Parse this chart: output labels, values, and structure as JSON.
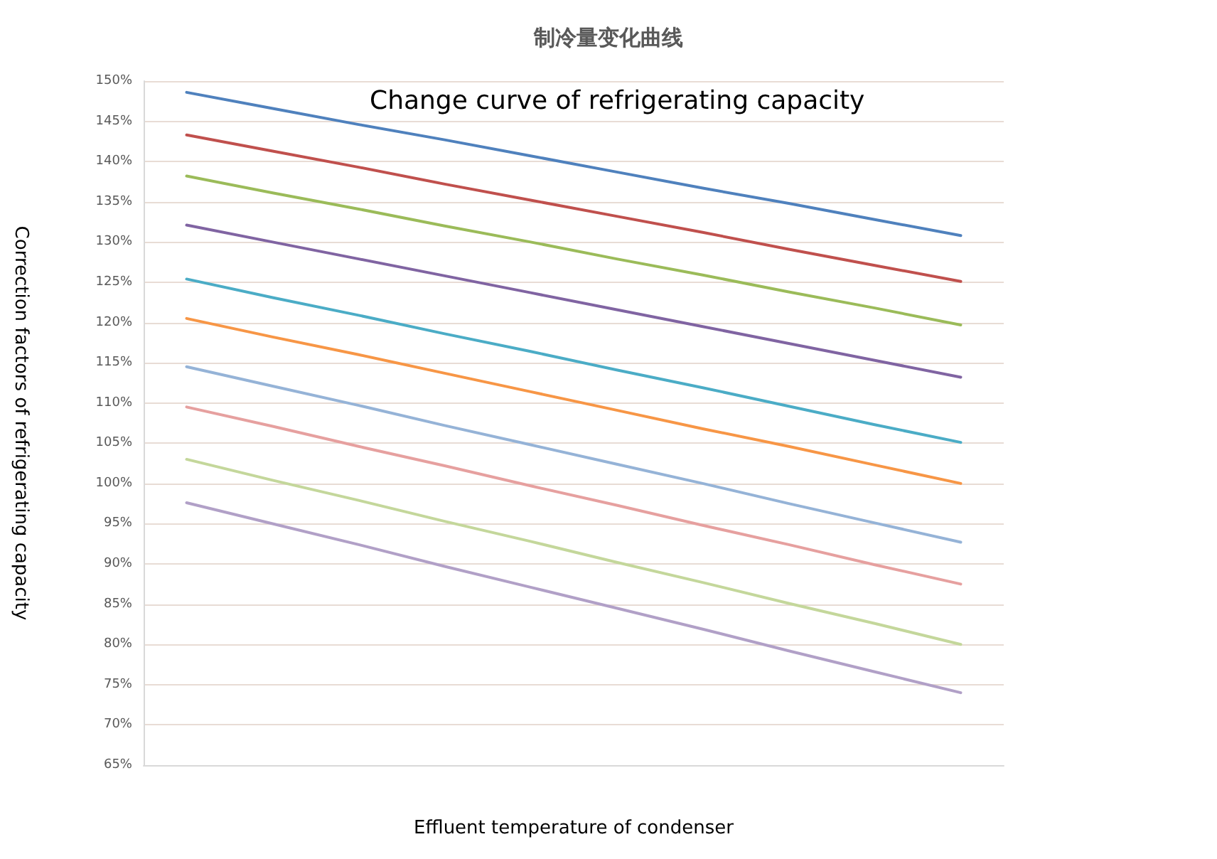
{
  "chart_data": {
    "type": "line",
    "title": "制冷量变化曲线",
    "xlabel": "Effluent temperature of condenser",
    "ylabel": "Correction factors of refrigerating capacity",
    "annotations": [
      "Change curve of refrigerating capacity"
    ],
    "categories": [
      null,
      null,
      null,
      null,
      null,
      null,
      null,
      null,
      null,
      null
    ],
    "series": [
      {
        "color": "#4f81bd",
        "values": [
          148.6,
          146.6,
          144.6,
          142.7,
          140.7,
          138.7,
          136.7,
          134.8,
          132.8,
          130.8
        ]
      },
      {
        "color": "#c0504d",
        "values": [
          143.3,
          141.3,
          139.3,
          137.2,
          135.2,
          133.2,
          131.2,
          129.1,
          127.1,
          125.1
        ]
      },
      {
        "color": "#9bbb59",
        "values": [
          138.2,
          136.1,
          134.1,
          132.0,
          130.0,
          127.9,
          125.9,
          123.8,
          121.8,
          119.7
        ]
      },
      {
        "color": "#8064a2",
        "values": [
          132.1,
          130.0,
          127.9,
          125.8,
          123.7,
          121.6,
          119.5,
          117.4,
          115.3,
          113.2
        ]
      },
      {
        "color": "#4bacc6",
        "values": [
          125.4,
          123.1,
          120.9,
          118.6,
          116.4,
          114.1,
          111.9,
          109.6,
          107.3,
          105.1
        ]
      },
      {
        "color": "#f79646",
        "values": [
          120.5,
          118.2,
          116.0,
          113.7,
          111.4,
          109.1,
          106.8,
          104.6,
          102.3,
          100.0
        ]
      },
      {
        "color": "#95b3d7",
        "values": [
          114.5,
          112.1,
          109.7,
          107.2,
          104.8,
          102.4,
          100.0,
          97.5,
          95.1,
          92.7
        ]
      },
      {
        "color": "#e6a09f",
        "values": [
          109.5,
          107.1,
          104.6,
          102.2,
          99.7,
          97.3,
          94.8,
          92.4,
          89.9,
          87.5
        ]
      },
      {
        "color": "#c4d79b",
        "values": [
          103.0,
          100.4,
          97.9,
          95.3,
          92.8,
          90.2,
          87.7,
          85.1,
          82.6,
          80.0
        ]
      },
      {
        "color": "#b1a0c7",
        "values": [
          97.6,
          95.0,
          92.4,
          89.7,
          87.1,
          84.5,
          81.9,
          79.2,
          76.6,
          74.0
        ]
      }
    ],
    "ylim": [
      65,
      150
    ],
    "yticks": [
      {
        "value": 65,
        "label": "65%"
      },
      {
        "value": 70,
        "label": "70%"
      },
      {
        "value": 75,
        "label": "75%"
      },
      {
        "value": 80,
        "label": "80%"
      },
      {
        "value": 85,
        "label": "85%"
      },
      {
        "value": 90,
        "label": "90%"
      },
      {
        "value": 95,
        "label": "95%"
      },
      {
        "value": 100,
        "label": "100%"
      },
      {
        "value": 105,
        "label": "105%"
      },
      {
        "value": 110,
        "label": "110%"
      },
      {
        "value": 115,
        "label": "115%"
      },
      {
        "value": 120,
        "label": "120%"
      },
      {
        "value": 125,
        "label": "125%"
      },
      {
        "value": 130,
        "label": "130%"
      },
      {
        "value": 135,
        "label": "135%"
      },
      {
        "value": 140,
        "label": "140%"
      },
      {
        "value": 145,
        "label": "145%"
      },
      {
        "value": 150,
        "label": "150%"
      }
    ],
    "grid": "y",
    "marker": "none",
    "line_style": "solid"
  }
}
